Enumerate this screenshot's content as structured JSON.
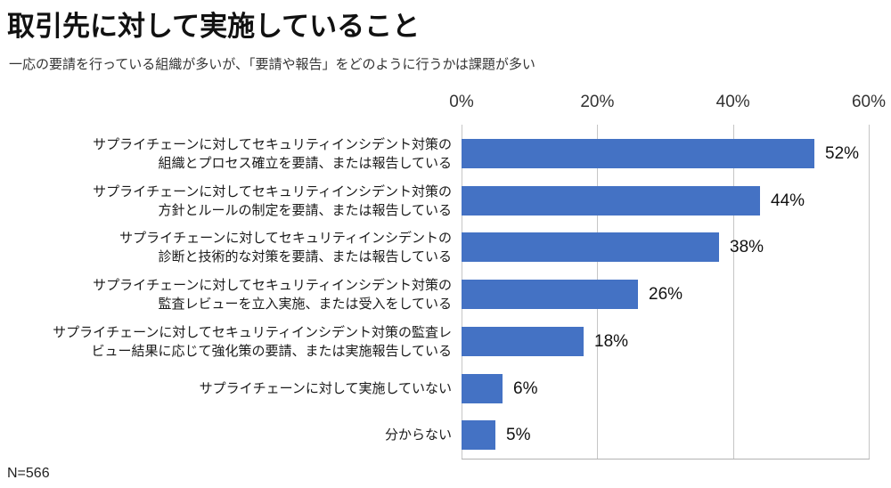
{
  "title": "取引先に対して実施していること",
  "subtitle": "一応の要請を行っている組織が多いが、「要請や報告」をどのように行うかは課題が多い",
  "footnote": "N=566",
  "colors": {
    "bar": "#4472C4",
    "gridline": "#c6c6c6",
    "title_text": "#111111",
    "body_text": "#1a1a1a"
  },
  "chart_data": {
    "type": "bar",
    "orientation": "horizontal",
    "title": "取引先に対して実施していること",
    "xlabel": "",
    "ylabel": "",
    "grid": true,
    "legend": false,
    "axis": {
      "min": 0,
      "max": 60,
      "ticks": [
        "0%",
        "20%",
        "40%",
        "60%"
      ],
      "tick_values": [
        0,
        20,
        40,
        60
      ]
    },
    "categories": [
      "サプライチェーンに対してセキュリティインシデント対策の\n組織とプロセス確立を要請、または報告している",
      "サプライチェーンに対してセキュリティインシデント対策の\n方針とルールの制定を要請、または報告している",
      "サプライチェーンに対してセキュリティインシデントの\n診断と技術的な対策を要請、または報告している",
      "サプライチェーンに対してセキュリティインシデント対策の\n監査レビューを立入実施、または受入をしている",
      "サプライチェーンに対してセキュリティインシデント対策の監査レ\nビュー結果に応じて強化策の要請、または実施報告している",
      "サプライチェーンに対して実施していない",
      "分からない"
    ],
    "values": [
      52,
      44,
      38,
      26,
      18,
      6,
      5
    ],
    "value_labels": [
      "52%",
      "44%",
      "38%",
      "26%",
      "18%",
      "6%",
      "5%"
    ]
  }
}
